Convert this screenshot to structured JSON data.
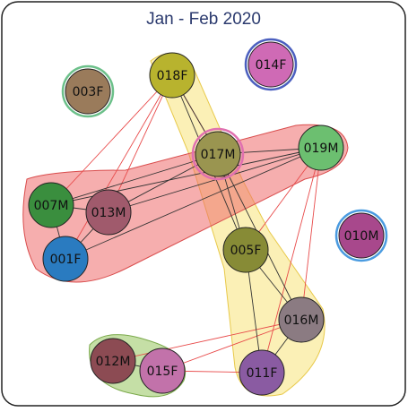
{
  "title": "Jan - Feb 2020",
  "nodes": [
    {
      "label": "018F",
      "color": "#b8b32e"
    },
    {
      "label": "014F",
      "color": "#cf6ab5"
    },
    {
      "label": "003F",
      "color": "#9a7b5b"
    },
    {
      "label": "017M",
      "color": "#9a9550"
    },
    {
      "label": "019M",
      "color": "#6cbf70"
    },
    {
      "label": "007M",
      "color": "#3a8e3e"
    },
    {
      "label": "013M",
      "color": "#a05a6c"
    },
    {
      "label": "001F",
      "color": "#2a7bc0"
    },
    {
      "label": "010M",
      "color": "#a8488c"
    },
    {
      "label": "005F",
      "color": "#878b36"
    },
    {
      "label": "016M",
      "color": "#8b7b82"
    },
    {
      "label": "012M",
      "color": "#8c4b53"
    },
    {
      "label": "015F",
      "color": "#c272aa"
    },
    {
      "label": "011F",
      "color": "#8a5ba2"
    }
  ]
}
